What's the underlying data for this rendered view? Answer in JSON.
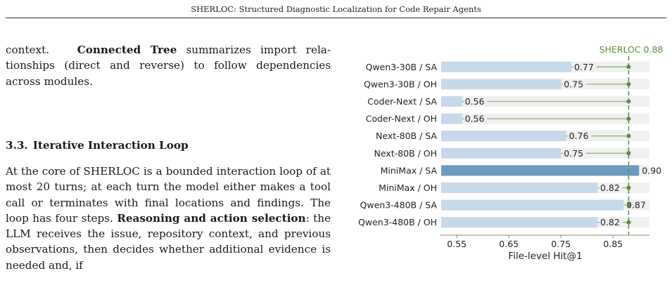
{
  "header": {
    "running_title": "SHERLOC: Structured Diagnostic Localization for Code Repair Agents"
  },
  "paragraph_1": {
    "lead": "context.",
    "term": "Connected Tree",
    "rest": "summarizes import rela­tionships (direct and reverse) to follow dependencies across modules."
  },
  "section": {
    "number": "3.3.",
    "title": "Iterative Interaction Loop"
  },
  "paragraph_2": {
    "part1": "At the core of SHERLOC is a bounded interaction loop of at most 20 turns; at each turn the model either makes a tool call or terminates with final locations and findings. The loop has four steps.",
    "term": "Reasoning and action selection",
    "part2": ": the LLM receives the issue, repository context, and previous observations, then decides whether additional evidence is needed and, if"
  },
  "chart_data": {
    "type": "bar",
    "orientation": "horizontal",
    "categories": [
      "Qwen3-30B / SA",
      "Qwen3-30B / OH",
      "Coder-Next / SA",
      "Coder-Next / OH",
      "Next-80B / SA",
      "Next-80B / OH",
      "MiniMax / SA",
      "MiniMax / OH",
      "Qwen3-480B / SA",
      "Qwen3-480B / OH"
    ],
    "values": [
      0.77,
      0.75,
      0.56,
      0.56,
      0.76,
      0.75,
      0.9,
      0.82,
      0.87,
      0.82
    ],
    "value_labels": [
      "0.77",
      "0.75",
      "0.56",
      "0.56",
      "0.76",
      "0.75",
      "0.90",
      "0.82",
      "0.87",
      "0.82"
    ],
    "highlight_index": 6,
    "reference_line": {
      "value": 0.88,
      "label": "SHERLOC 0.88"
    },
    "xlabel": "File-level Hit@1",
    "ylabel": "",
    "xlim": [
      0.52,
      0.92
    ],
    "xticks": [
      0.55,
      0.65,
      0.75,
      0.85
    ],
    "xtick_labels": [
      "0.55",
      "0.65",
      "0.75",
      "0.85"
    ],
    "grid": false,
    "colors": {
      "bar": "#c5d9ea",
      "highlight_bar": "#6b99c0",
      "row_background": "#f0f0f0",
      "connector": "#8ab87a",
      "reference": "#5a8f3c",
      "axis": "#888888",
      "text": "#222222"
    }
  }
}
